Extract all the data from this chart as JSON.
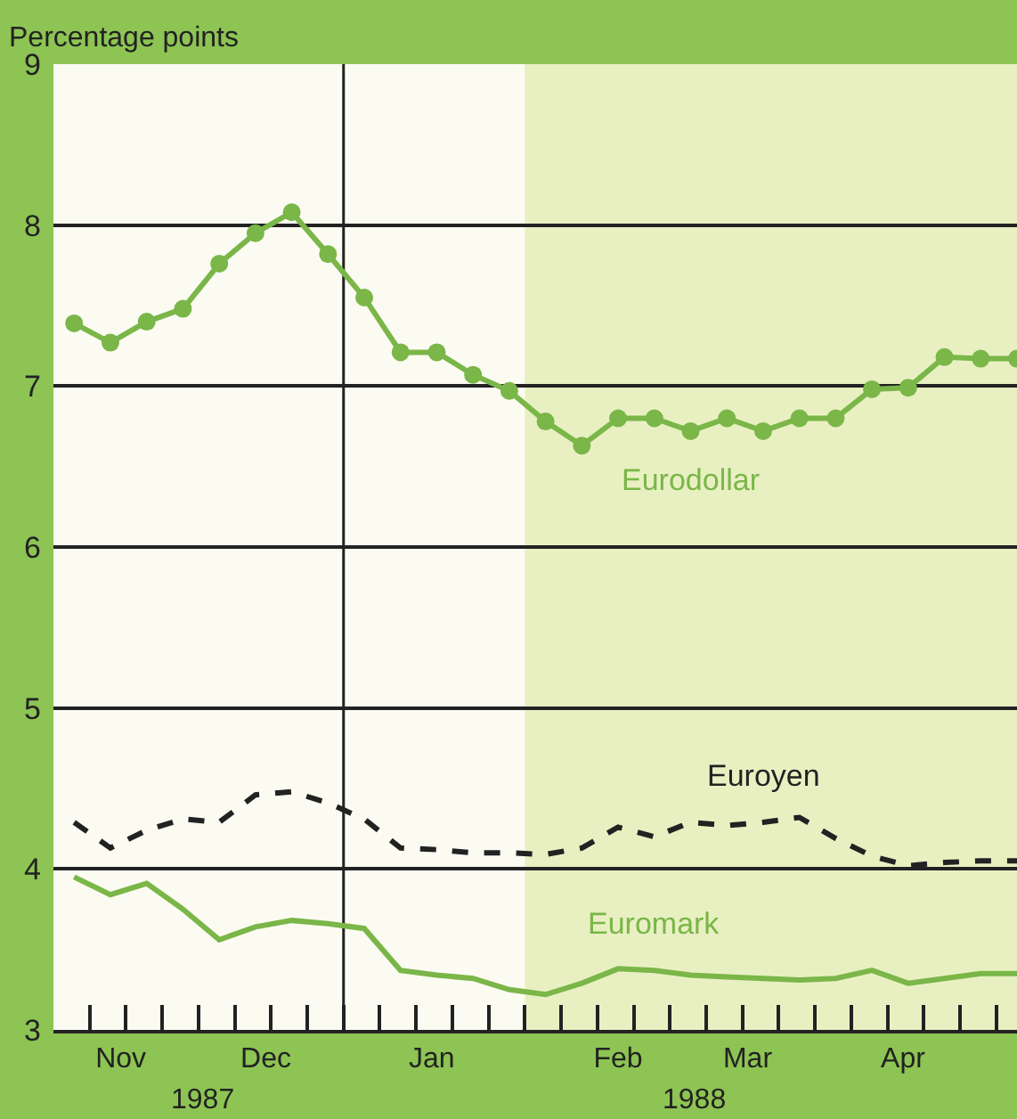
{
  "chart_data": {
    "type": "line",
    "ylabel": "Percentage points",
    "x": [
      "1987-11-10",
      "1987-11-17",
      "1987-11-24",
      "1987-12-01",
      "1987-12-08",
      "1987-12-15",
      "1987-12-22",
      "1987-12-29",
      "1988-01-05",
      "1988-01-12",
      "1988-01-19",
      "1988-01-26",
      "1988-02-02",
      "1988-02-09",
      "1988-02-16",
      "1988-02-23",
      "1988-03-01",
      "1988-03-08",
      "1988-03-15",
      "1988-03-22",
      "1988-03-29",
      "1988-04-05",
      "1988-04-12",
      "1988-04-19",
      "1988-04-26",
      "1988-05-03",
      "1988-05-10"
    ],
    "series": [
      {
        "name": "Eurodollar",
        "color": "#7ab648",
        "marker": "circle",
        "line_style": "solid",
        "values": [
          7.39,
          7.27,
          7.4,
          7.48,
          7.76,
          7.95,
          8.08,
          7.82,
          7.55,
          7.21,
          7.21,
          7.07,
          6.97,
          6.78,
          6.63,
          6.8,
          6.8,
          6.72,
          6.8,
          6.72,
          6.8,
          6.8,
          6.98,
          6.99,
          7.18,
          7.17,
          7.17
        ]
      },
      {
        "name": "Euroyen",
        "color": "#222222",
        "marker": "none",
        "line_style": "dashed",
        "values": [
          4.29,
          4.13,
          4.24,
          4.31,
          4.29,
          4.46,
          4.48,
          4.41,
          4.31,
          4.13,
          4.12,
          4.1,
          4.1,
          4.09,
          4.13,
          4.26,
          4.2,
          4.29,
          4.27,
          4.29,
          4.32,
          4.19,
          4.08,
          4.02,
          4.04,
          4.05,
          4.05
        ]
      },
      {
        "name": "Euromark",
        "color": "#7ab648",
        "marker": "none",
        "line_style": "solid",
        "values": [
          3.95,
          3.84,
          3.91,
          3.75,
          3.56,
          3.64,
          3.68,
          3.66,
          3.63,
          3.37,
          3.34,
          3.32,
          3.25,
          3.22,
          3.29,
          3.38,
          3.37,
          3.34,
          3.33,
          3.32,
          3.31,
          3.32,
          3.37,
          3.29,
          3.32,
          3.35,
          3.35
        ]
      }
    ],
    "xlim": [
      "1987-11-06",
      "1988-05-10"
    ],
    "xticks": [
      {
        "value": "1987-11-19",
        "label": "Nov"
      },
      {
        "value": "1987-12-17",
        "label": "Dec"
      },
      {
        "value": "1988-01-18",
        "label": "Jan"
      },
      {
        "value": "1988-02-23",
        "label": "Feb"
      },
      {
        "value": "1988-03-19",
        "label": "Mar"
      },
      {
        "value": "1988-04-18",
        "label": "Apr"
      },
      {
        "value": "1987-11-13",
        "label": null
      },
      {
        "value": "1987-11-20",
        "label": null
      },
      {
        "value": "1987-11-27",
        "label": null
      },
      {
        "value": "1987-12-04",
        "label": null
      },
      {
        "value": "1987-12-11",
        "label": null
      },
      {
        "value": "1987-12-18",
        "label": null
      },
      {
        "value": "1987-12-25",
        "label": null
      },
      {
        "value": "1988-01-01",
        "label": null
      },
      {
        "value": "1988-01-08",
        "label": null
      },
      {
        "value": "1988-01-15",
        "label": null
      },
      {
        "value": "1988-01-22",
        "label": null
      },
      {
        "value": "1988-01-29",
        "label": null
      },
      {
        "value": "1988-02-05",
        "label": null
      },
      {
        "value": "1988-02-12",
        "label": null
      },
      {
        "value": "1988-02-19",
        "label": null
      },
      {
        "value": "1988-02-26",
        "label": null
      },
      {
        "value": "1988-03-04",
        "label": null
      },
      {
        "value": "1988-03-11",
        "label": null
      },
      {
        "value": "1988-03-18",
        "label": null
      },
      {
        "value": "1988-03-25",
        "label": null
      },
      {
        "value": "1988-04-01",
        "label": null
      },
      {
        "value": "1988-04-08",
        "label": null
      },
      {
        "value": "1988-04-15",
        "label": null
      },
      {
        "value": "1988-04-22",
        "label": null
      },
      {
        "value": "1988-04-29",
        "label": null
      },
      {
        "value": "1988-05-06",
        "label": null
      }
    ],
    "ylim": [
      3,
      9
    ],
    "yticks": [
      3,
      4,
      5,
      6,
      7,
      8,
      9
    ],
    "grid": "y",
    "legend": false,
    "ref_lines": [
      {
        "axis": "x",
        "value": "1988-01-01",
        "color": "#222222",
        "line_style": "solid"
      }
    ],
    "bands": [
      {
        "axis": "x",
        "from": "1988-02-05",
        "to": "1988-05-10",
        "color": "#e8f0c2"
      }
    ],
    "annotations": [
      "1987",
      "1988"
    ]
  }
}
